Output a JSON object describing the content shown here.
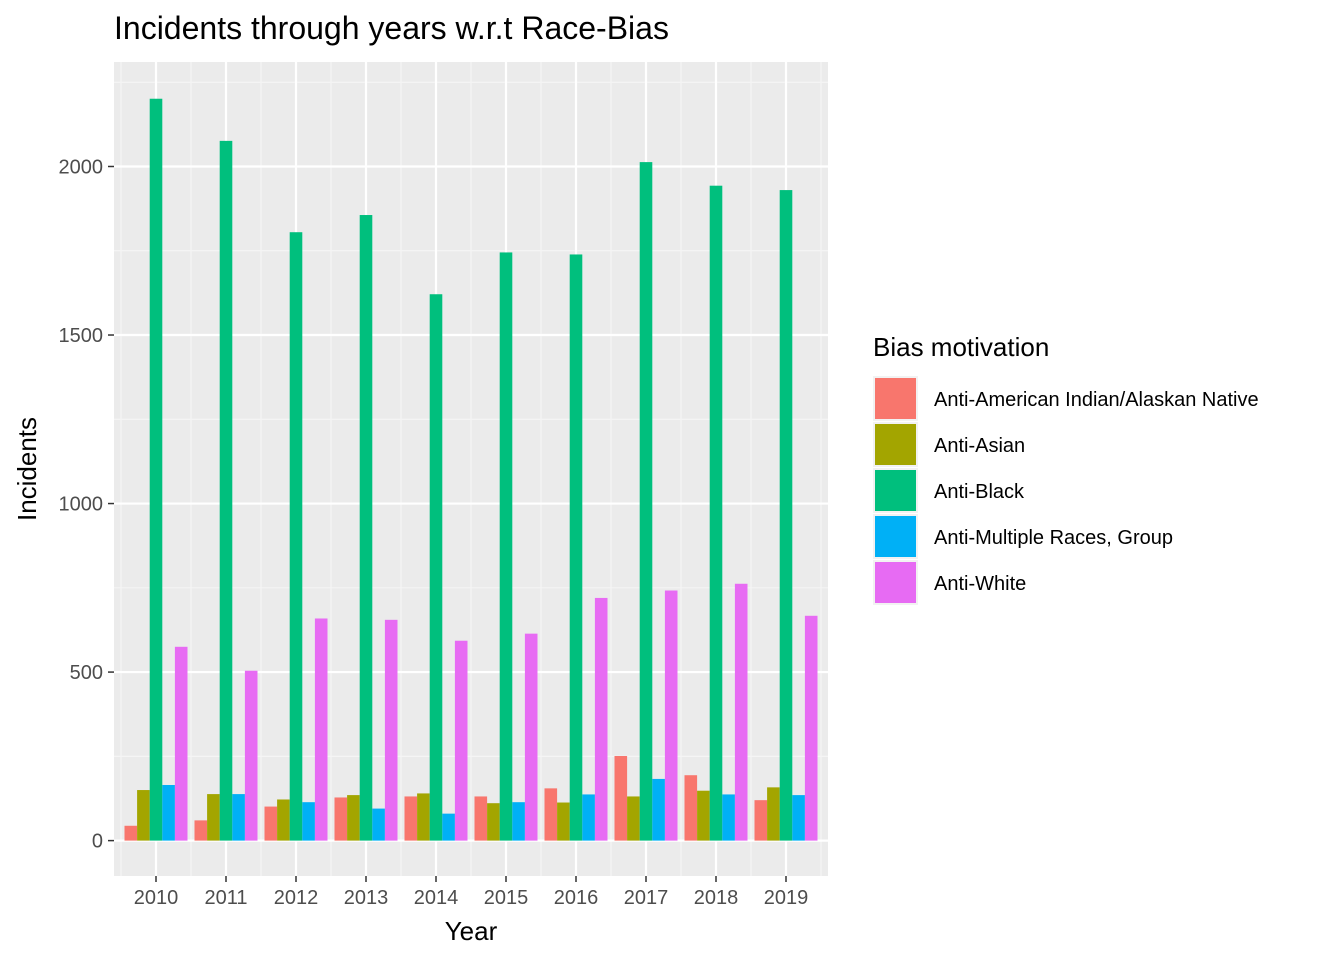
{
  "chart_data": {
    "type": "bar",
    "title": "Incidents through years w.r.t Race-Bias",
    "xlabel": "Year",
    "ylabel": "Incidents",
    "categories": [
      "2010",
      "2011",
      "2012",
      "2013",
      "2014",
      "2015",
      "2016",
      "2017",
      "2018",
      "2019"
    ],
    "ylim": [
      -105,
      2310
    ],
    "yticks": [
      0,
      500,
      1000,
      1500,
      2000
    ],
    "grid": true,
    "legend": {
      "title": "Bias motivation",
      "position": "right"
    },
    "series": [
      {
        "name": "Anti-American Indian/Alaskan Native",
        "color": "#F8766D",
        "values": [
          44,
          60,
          101,
          128,
          131,
          131,
          155,
          251,
          194,
          120
        ]
      },
      {
        "name": "Anti-Asian",
        "color": "#A3A500",
        "values": [
          150,
          138,
          122,
          135,
          140,
          111,
          113,
          131,
          148,
          158
        ]
      },
      {
        "name": "Anti-Black",
        "color": "#00BF7D",
        "values": [
          2201,
          2076,
          1805,
          1856,
          1621,
          1745,
          1739,
          2013,
          1943,
          1930
        ]
      },
      {
        "name": "Anti-Multiple Races, Group",
        "color": "#00B0F6",
        "values": [
          165,
          138,
          114,
          95,
          80,
          114,
          137,
          183,
          137,
          135
        ]
      },
      {
        "name": "Anti-White",
        "color": "#E76BF3",
        "values": [
          575,
          504,
          659,
          655,
          593,
          614,
          720,
          742,
          762,
          667
        ]
      }
    ]
  }
}
